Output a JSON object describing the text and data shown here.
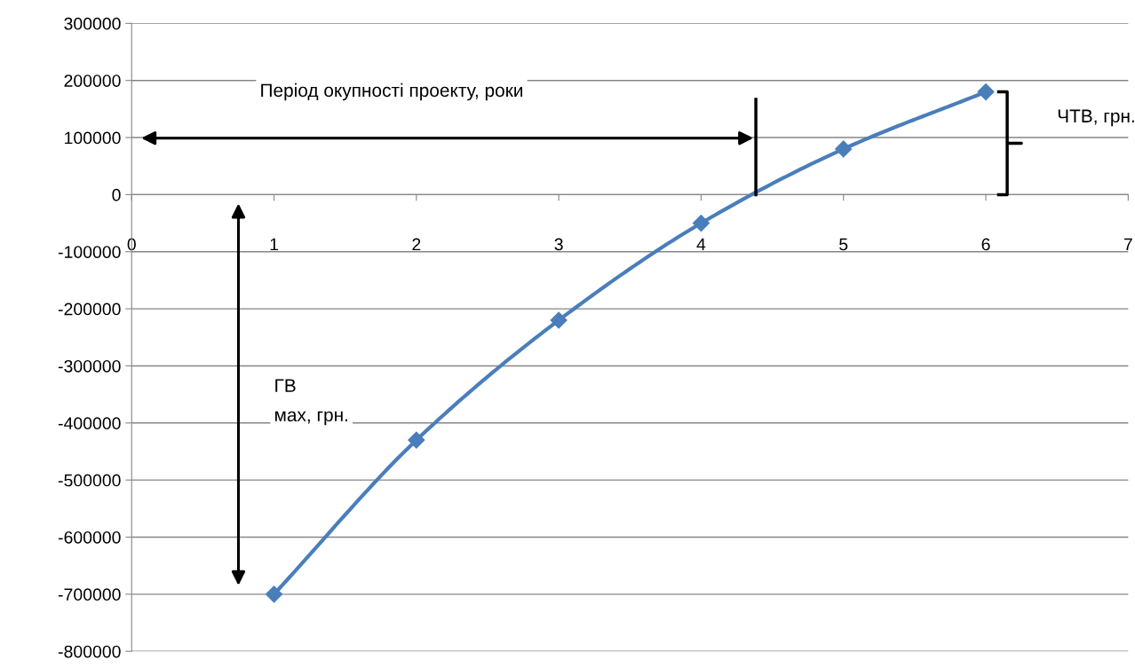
{
  "chart_data": {
    "type": "line",
    "x": [
      1,
      2,
      3,
      4,
      5,
      6
    ],
    "series": [
      {
        "color": "#4a7ebb",
        "values": [
          -700000,
          -430000,
          -220000,
          -50000,
          80000,
          180000
        ]
      }
    ],
    "xlim": [
      0,
      7
    ],
    "xticks": [
      0,
      1,
      2,
      3,
      4,
      5,
      6,
      7
    ],
    "ylim": [
      -800000,
      300000
    ],
    "yticks": [
      -800000,
      -700000,
      -600000,
      -500000,
      -400000,
      -300000,
      -200000,
      -100000,
      0,
      100000,
      200000,
      300000
    ],
    "grid": "y",
    "marker": "diamond",
    "line_style": "solid",
    "legend": false,
    "annotations": [
      "Період окупності проекту, роки",
      "ЧТВ, грн.",
      "ГВ\nмах, грн."
    ]
  }
}
